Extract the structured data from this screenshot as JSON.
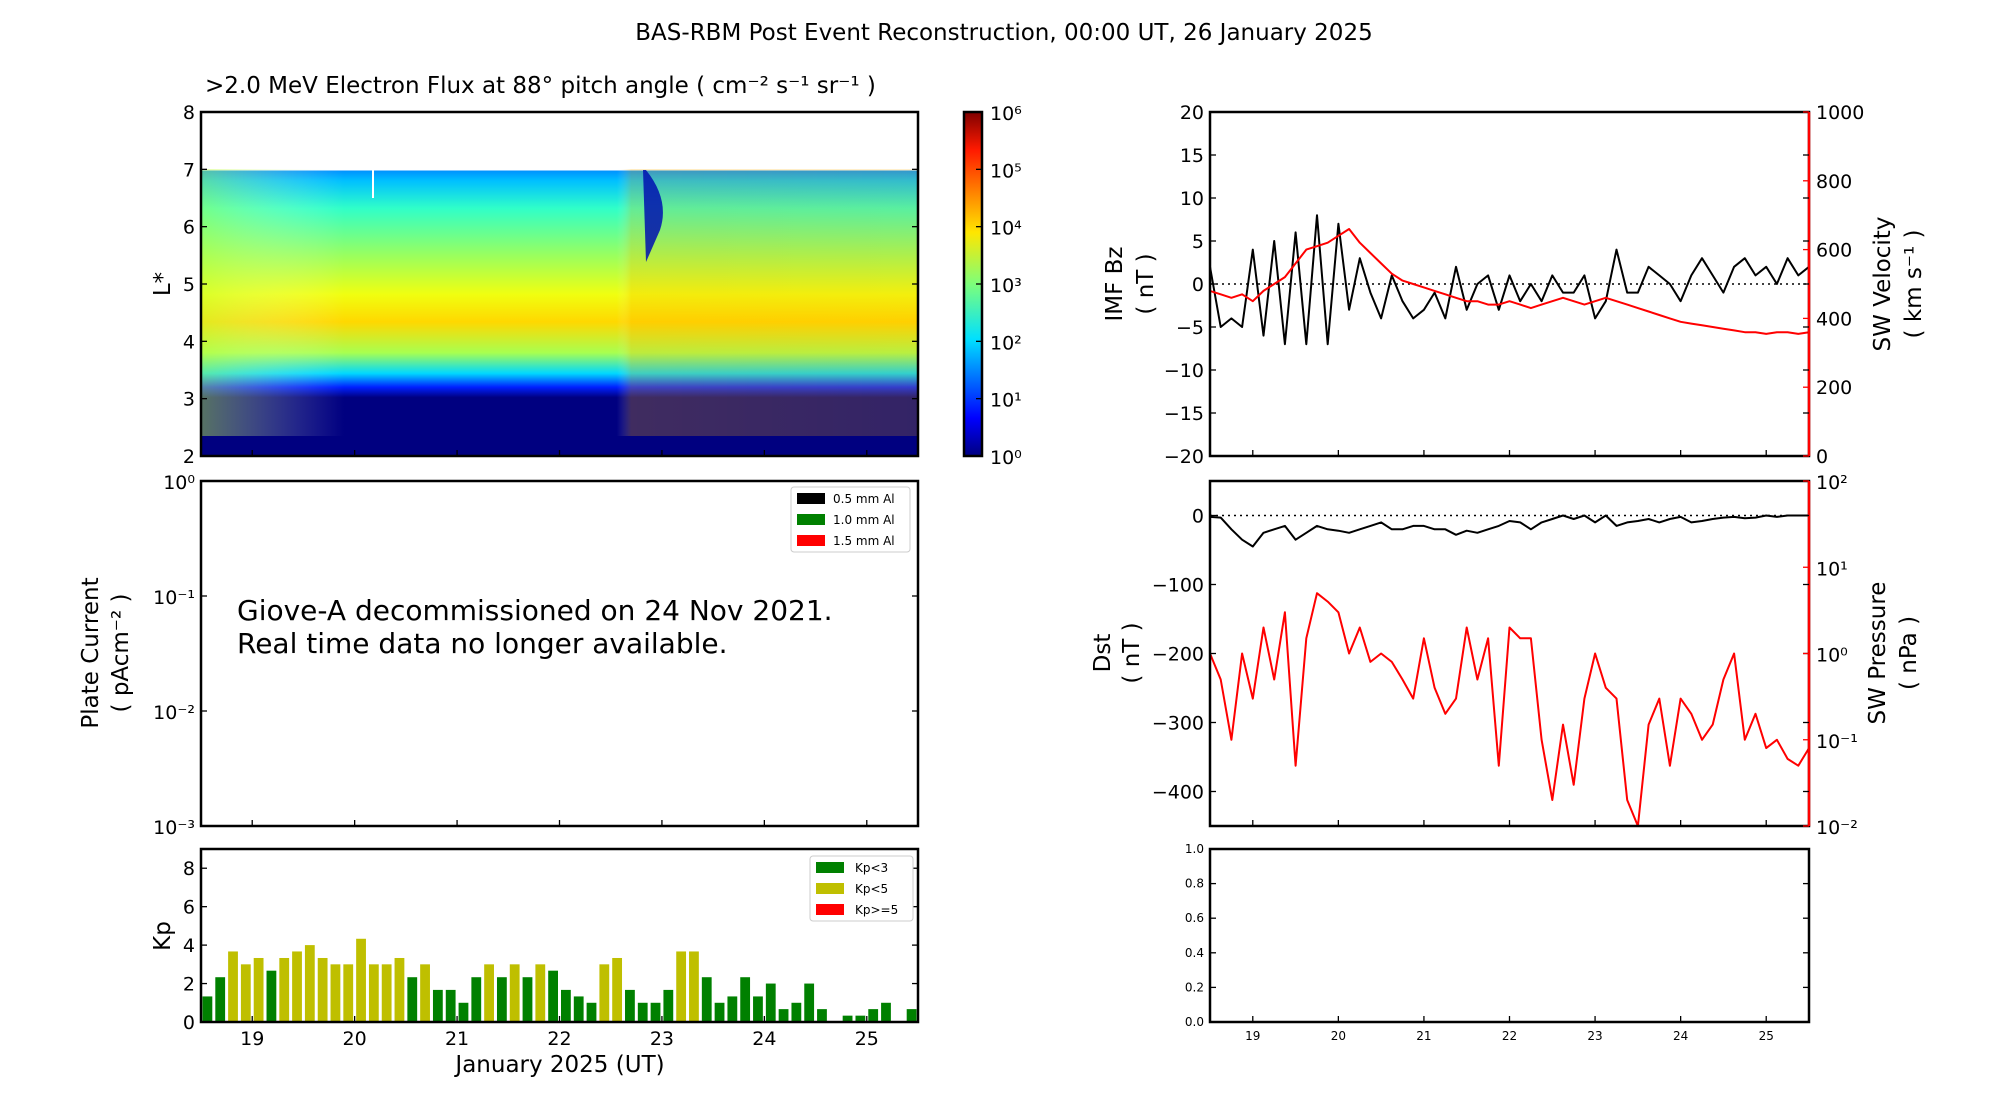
{
  "figure_title": "BAS-RBM Post Event Reconstruction, 00:00 UT, 26 January 2025",
  "colors": {
    "kp_low": "#008000",
    "kp_mid": "#bfbf00",
    "kp_high": "#ff0000",
    "solar_wind": "#ff0000",
    "imf": "#000000"
  },
  "chart_data": [
    {
      "type": "heatmap",
      "title": ">2.0 MeV Electron Flux at 88° pitch angle ( cm⁻² s⁻¹ sr⁻¹ )",
      "ylabel": "L*",
      "ylim": [
        2,
        8
      ],
      "yticks": [
        "2",
        "3",
        "4",
        "5",
        "6",
        "7",
        "8"
      ],
      "xlim": [
        "2025-01-18 12:00",
        "2025-01-25 12:00"
      ],
      "colormap": "jet",
      "color_scale": "log",
      "colorbar_range": [
        1,
        1000000
      ],
      "colorbar_ticks": [
        "10⁰",
        "10¹",
        "10²",
        "10³",
        "10⁴",
        "10⁵",
        "10⁶"
      ],
      "data_coverage_max_L": 7,
      "peak_flux_region_L": [
        4,
        4.7
      ]
    },
    {
      "type": "line",
      "ylabel": "Plate Current",
      "ylabel_units": "( pAcm⁻² )",
      "yscale": "log",
      "ylim": [
        0.001,
        1
      ],
      "yticks": [
        "10⁻³",
        "10⁻²",
        "10⁻¹",
        "10⁰"
      ],
      "legend": [
        "0.5 mm Al",
        "1.0 mm Al",
        "1.5 mm Al"
      ],
      "legend_colors": [
        "#000000",
        "#008000",
        "#ff0000"
      ],
      "legend_placement": "top-right",
      "annotation": [
        "Giove-A decommissioned on 24 Nov 2021.",
        "Real time data no longer available."
      ]
    },
    {
      "type": "bar",
      "ylabel": "Kp",
      "xlabel": "January 2025 (UT)",
      "ylim": [
        0,
        9
      ],
      "yticks": [
        "0",
        "2",
        "4",
        "6",
        "8"
      ],
      "xticks": [
        "19",
        "20",
        "21",
        "22",
        "23",
        "24",
        "25"
      ],
      "xlim": [
        18.5,
        25.5
      ],
      "bar_interval_hours": 3,
      "legend": [
        "Kp<3",
        "Kp<5",
        "Kp>=5"
      ],
      "legend_placement": "top-right",
      "values": [
        1.33,
        2.33,
        3.67,
        3,
        3.33,
        2.67,
        3.33,
        3.67,
        4,
        3.33,
        3,
        3,
        4.33,
        3,
        3,
        3.33,
        2.33,
        3,
        1.67,
        1.67,
        1,
        2.33,
        3,
        2.33,
        3,
        2.33,
        3,
        2.67,
        1.67,
        1.33,
        1,
        3,
        3.33,
        1.67,
        1,
        1,
        1.67,
        3.67,
        3.67,
        2.33,
        1,
        1.33,
        2.33,
        1.33,
        2,
        0.67,
        1,
        2,
        0.67,
        0,
        0.33,
        0.33,
        0.67,
        1,
        0,
        0.67
      ]
    },
    {
      "type": "line",
      "ylabel": "IMF Bz",
      "ylabel_units": "( nT )",
      "ylim": [
        -20,
        20
      ],
      "yticks": [
        "−20",
        "−15",
        "−10",
        "−5",
        "0",
        "5",
        "10",
        "15",
        "20"
      ],
      "y2label": "SW Velocity",
      "y2label_units": "( km s⁻¹ )",
      "y2lim": [
        0,
        1000
      ],
      "y2ticks": [
        "0",
        "200",
        "400",
        "600",
        "800",
        "1000"
      ],
      "xlim": [
        18.5,
        25.5
      ],
      "series": [
        {
          "axis": "left",
          "color": "#000000",
          "values": [
            2,
            -5,
            -4,
            -5,
            4,
            -6,
            5,
            -7,
            6,
            -7,
            8,
            -7,
            7,
            -3,
            3,
            -1,
            -4,
            1,
            -2,
            -4,
            -3,
            -1,
            -4,
            2,
            -3,
            0,
            1,
            -3,
            1,
            -2,
            0,
            -2,
            1,
            -1,
            -1,
            1,
            -4,
            -2,
            4,
            -1,
            -1,
            2,
            1,
            0,
            -2,
            1,
            3,
            1,
            -1,
            2,
            3,
            1,
            2,
            0,
            3,
            1,
            2
          ]
        },
        {
          "axis": "right",
          "color": "#ff0000",
          "values": [
            480,
            470,
            460,
            470,
            450,
            480,
            500,
            520,
            560,
            600,
            610,
            620,
            640,
            660,
            620,
            590,
            560,
            530,
            510,
            500,
            490,
            480,
            470,
            460,
            450,
            450,
            440,
            440,
            450,
            440,
            430,
            440,
            450,
            460,
            450,
            440,
            450,
            460,
            450,
            440,
            430,
            420,
            410,
            400,
            390,
            385,
            380,
            375,
            370,
            365,
            360,
            360,
            355,
            360,
            360,
            355,
            360
          ]
        }
      ]
    },
    {
      "type": "line",
      "ylabel": "Dst",
      "ylabel_units": "( nT )",
      "ylim": [
        -450,
        50
      ],
      "yticks": [
        "−400",
        "−300",
        "−200",
        "−100",
        "0"
      ],
      "y2label": "SW Pressure",
      "y2label_units": "( nPa )",
      "y2scale": "log",
      "y2lim": [
        0.01,
        100
      ],
      "y2ticks": [
        "10⁻²",
        "10⁻¹",
        "10⁰",
        "10¹",
        "10²"
      ],
      "xlim": [
        18.5,
        25.5
      ],
      "series": [
        {
          "axis": "left",
          "color": "#000000",
          "values": [
            -2,
            -3,
            -20,
            -35,
            -45,
            -25,
            -20,
            -15,
            -35,
            -25,
            -15,
            -20,
            -22,
            -25,
            -20,
            -15,
            -10,
            -20,
            -20,
            -15,
            -15,
            -20,
            -20,
            -28,
            -22,
            -25,
            -20,
            -15,
            -8,
            -10,
            -20,
            -10,
            -5,
            0,
            -5,
            0,
            -10,
            0,
            -15,
            -10,
            -8,
            -5,
            -10,
            -5,
            -2,
            -10,
            -8,
            -5,
            -3,
            -2,
            -4,
            -3,
            0,
            -2,
            0,
            0,
            0
          ]
        },
        {
          "axis": "right",
          "color": "#ff0000",
          "values": [
            1,
            0.5,
            0.1,
            1,
            0.3,
            2,
            0.5,
            3,
            0.05,
            1.5,
            5,
            4,
            3,
            1,
            2,
            0.8,
            1,
            0.8,
            0.5,
            0.3,
            1.5,
            0.4,
            0.2,
            0.3,
            2,
            0.5,
            1.5,
            0.05,
            2,
            1.5,
            1.5,
            0.1,
            0.02,
            0.15,
            0.03,
            0.3,
            1,
            0.4,
            0.3,
            0.02,
            0.01,
            0.15,
            0.3,
            0.05,
            0.3,
            0.2,
            0.1,
            0.15,
            0.5,
            1,
            0.1,
            0.2,
            0.08,
            0.1,
            0.06,
            0.05,
            0.08
          ]
        }
      ]
    },
    {
      "type": "line",
      "ylim": [
        0,
        1
      ],
      "yticks": [
        "0.0",
        "0.2",
        "0.4",
        "0.6",
        "0.8",
        "1.0"
      ],
      "xticks": [
        "19",
        "20",
        "21",
        "22",
        "23",
        "24",
        "25"
      ],
      "xlim": [
        18.5,
        25.5
      ]
    }
  ]
}
